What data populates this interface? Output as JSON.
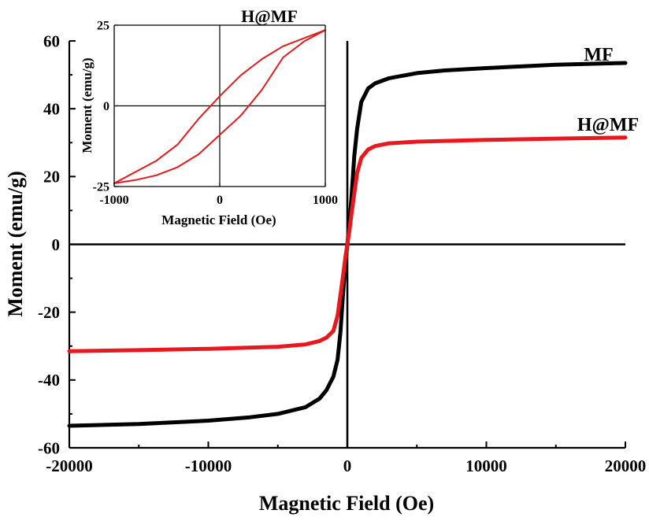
{
  "chart_data": [
    {
      "type": "line",
      "title": "",
      "xlabel": "Magnetic Field (Oe)",
      "ylabel": "Moment (emu/g)",
      "xlim": [
        -20000,
        20000
      ],
      "ylim": [
        -60,
        60
      ],
      "xticks": [
        -20000,
        -10000,
        0,
        10000,
        20000
      ],
      "yticks": [
        -60,
        -40,
        -20,
        0,
        20,
        40,
        60
      ],
      "xtick_labels": [
        "-20000",
        "-10000",
        "0",
        "10000",
        "20000"
      ],
      "ytick_labels": [
        "-60",
        "-40",
        "-20",
        "0",
        "20",
        "40",
        "60"
      ],
      "grid": false,
      "series": [
        {
          "name": "MF",
          "color": "#000000",
          "x": [
            -20000,
            -15000,
            -10000,
            -7000,
            -5000,
            -3000,
            -2000,
            -1500,
            -1000,
            -700,
            -500,
            -300,
            -150,
            0,
            150,
            300,
            500,
            700,
            1000,
            1500,
            2000,
            3000,
            5000,
            7000,
            10000,
            15000,
            20000
          ],
          "y": [
            -53.5,
            -53,
            -52,
            -51,
            -50,
            -48,
            -45.5,
            -43,
            -39,
            -34,
            -26,
            -14,
            -6,
            0,
            6,
            14,
            26,
            34,
            42,
            46,
            47.5,
            49,
            50.5,
            51.3,
            52,
            53,
            53.5
          ]
        },
        {
          "name": "H@MF",
          "color": "#e8191e",
          "x": [
            -20000,
            -15000,
            -10000,
            -5000,
            -3000,
            -2000,
            -1500,
            -1000,
            -700,
            -500,
            -300,
            -150,
            0,
            150,
            300,
            500,
            700,
            1000,
            1500,
            2000,
            3000,
            5000,
            10000,
            15000,
            20000
          ],
          "y": [
            -31.5,
            -31.2,
            -30.8,
            -30.2,
            -29.5,
            -28.5,
            -27.5,
            -25.5,
            -21,
            -15,
            -9,
            -4,
            0,
            4,
            9,
            15,
            21,
            25.5,
            28,
            29,
            29.8,
            30.3,
            30.8,
            31.2,
            31.5
          ]
        }
      ],
      "annotations": [
        "MF",
        "H@MF"
      ]
    },
    {
      "type": "line",
      "title": "H@MF",
      "xlabel": "Magnetic Field (Oe)",
      "ylabel": "Moment (emu/g)",
      "xlim": [
        -1000,
        1000
      ],
      "ylim": [
        -25,
        25
      ],
      "xticks": [
        -1000,
        0,
        1000
      ],
      "yticks": [
        -25,
        0,
        25
      ],
      "xtick_labels": [
        "-1000",
        "0",
        "1000"
      ],
      "ytick_labels": [
        "-25",
        "0",
        "25"
      ],
      "grid": false,
      "series": [
        {
          "name": "H@MF",
          "color": "#e8191e",
          "x": [
            -1000,
            -600,
            -400,
            -200,
            0,
            200,
            400,
            600,
            800,
            1000,
            800,
            600,
            400,
            200,
            0,
            -200,
            -400,
            -600,
            -800,
            -1000
          ],
          "y": [
            -24,
            -17,
            -12,
            -4,
            3,
            9.5,
            14.5,
            18.5,
            21,
            23.5,
            20,
            15,
            5,
            -3,
            -9,
            -15,
            -19,
            -21.5,
            -23,
            -24
          ]
        }
      ]
    }
  ],
  "labels": {
    "main_series_1": "MF",
    "main_series_2": "H@MF",
    "inset_title": "H@MF"
  }
}
